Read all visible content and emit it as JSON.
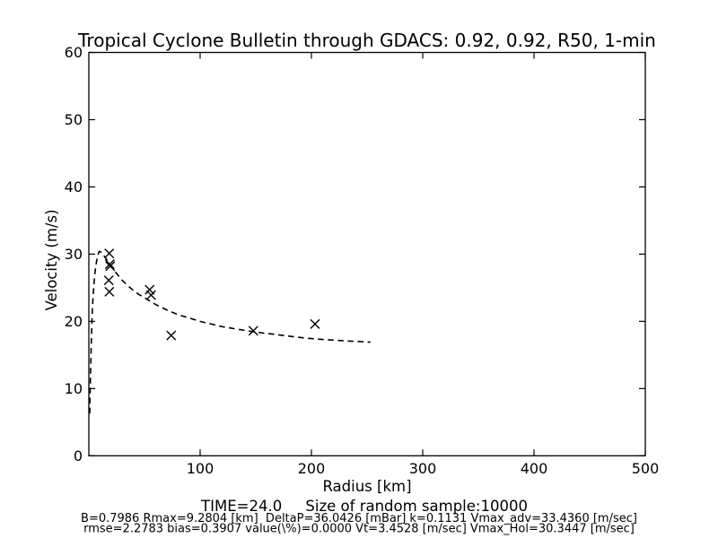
{
  "chart_data": {
    "type": "scatter",
    "title": "Tropical Cyclone Bulletin through GDACS: 0.92, 0.92, R50, 1-min",
    "xlabel": "Radius [km]",
    "xlabel_line2": "TIME=24.0     Size of random sample:10000",
    "ylabel": "Velocity (m/s)",
    "footer_line1": "B=0.7986 Rmax=9.2804 [km]  DeltaP=36.0426 [mBar] k=0.1131 Vmax_adv=33.4360 [m/sec]",
    "footer_line2": "rmse=2.2783 bias=0.3907 value(\\%)=0.0000 Vt=3.4528 [m/sec] Vmax_Hol=30.3447 [m/sec]",
    "xlim": [
      0,
      500
    ],
    "ylim": [
      0,
      60
    ],
    "xticks": [
      100,
      200,
      300,
      400,
      500
    ],
    "yticks": [
      0,
      10,
      20,
      30,
      40,
      50,
      60
    ],
    "grid": false,
    "legend_position": "none",
    "colors": {
      "foreground": "#000000",
      "background": "#ffffff"
    },
    "series": [
      {
        "name": "scatter",
        "type": "scatter",
        "marker": "x",
        "color": "#000000",
        "points": [
          [
            18.3,
            30.1
          ],
          [
            18.8,
            28.5
          ],
          [
            19.2,
            28.2
          ],
          [
            17.9,
            26.1
          ],
          [
            18.4,
            24.4
          ],
          [
            54.6,
            24.7
          ],
          [
            55.9,
            23.9
          ],
          [
            74.0,
            17.9
          ],
          [
            147.8,
            18.6
          ],
          [
            203.2,
            19.6
          ]
        ]
      },
      {
        "name": "dashed_line",
        "type": "line",
        "linestyle": "dashed",
        "color": "#000000",
        "points": [
          [
            0.8,
            6.3
          ],
          [
            1.0,
            8.2
          ],
          [
            1.5,
            12.4
          ],
          [
            2.0,
            15.8
          ],
          [
            2.5,
            18.6
          ],
          [
            3.0,
            20.9
          ],
          [
            3.5,
            22.7
          ],
          [
            4.0,
            24.2
          ],
          [
            5.0,
            26.4
          ],
          [
            6.0,
            27.9
          ],
          [
            7.0,
            29.0
          ],
          [
            8.0,
            29.8
          ],
          [
            9.3,
            30.4
          ],
          [
            11.0,
            30.3
          ],
          [
            13.0,
            29.9
          ],
          [
            15.0,
            29.4
          ],
          [
            18.0,
            28.7
          ],
          [
            21.0,
            28.0
          ],
          [
            25.0,
            27.1
          ],
          [
            30.0,
            26.1
          ],
          [
            35.0,
            25.3
          ],
          [
            40.0,
            24.6
          ],
          [
            45.0,
            24.0
          ],
          [
            50.0,
            23.5
          ],
          [
            60.0,
            22.5
          ],
          [
            70.0,
            21.7
          ],
          [
            80.0,
            21.0
          ],
          [
            90.0,
            20.5
          ],
          [
            100.0,
            20.0
          ],
          [
            110.0,
            19.6
          ],
          [
            120.0,
            19.2
          ],
          [
            135.0,
            18.8
          ],
          [
            150.0,
            18.4
          ],
          [
            165.0,
            18.1
          ],
          [
            180.0,
            17.8
          ],
          [
            195.0,
            17.5
          ],
          [
            210.0,
            17.3
          ],
          [
            230.0,
            17.1
          ],
          [
            253.0,
            16.9
          ]
        ]
      }
    ]
  }
}
